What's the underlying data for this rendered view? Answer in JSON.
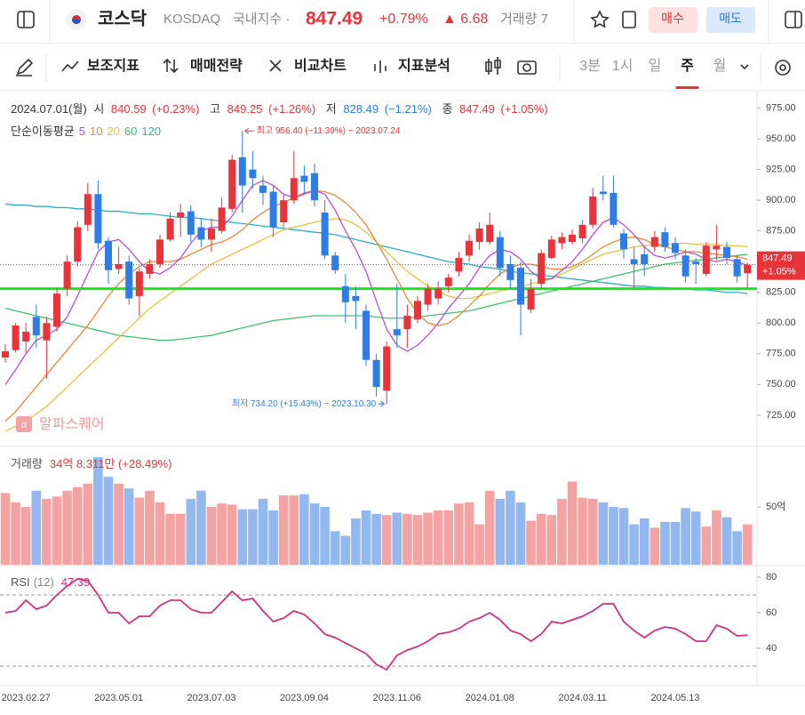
{
  "header": {
    "name": "코스닥",
    "code": "KOSDAQ",
    "market": "국내지수 ·",
    "change_pct": "+0.79%",
    "change": "▲ 6.68",
    "volume": "거래량 7",
    "buy": "매수",
    "sell": "매도"
  },
  "toolbar": {
    "items": [
      "보조지표",
      "매매전략",
      "비교차트",
      "지표분석"
    ],
    "timeframes": [
      "3분",
      "1시",
      "일",
      "주",
      "월"
    ],
    "selected_timeframe": 3
  },
  "watermark": "알파스퀘어",
  "chart_data": {
    "type": "candlestick",
    "legend": {
      "date": "2024.07.01(월)",
      "open_label": "시",
      "open_change": "(+0.23%)",
      "high_label": "고",
      "high_change": "(+1.26%)",
      "low_label": "저",
      "low_change": "(−1.21%)",
      "close_label": "종",
      "close_change": "(+1.05%)"
    },
    "price_tag_change": "+1.05%",
    "categories": [
      null,
      null,
      "2023.02.27",
      null,
      null,
      null,
      null,
      null,
      null,
      null,
      null,
      "2023.05.01",
      null,
      null,
      null,
      null,
      null,
      null,
      null,
      null,
      "2023.07.03",
      null,
      null,
      null,
      null,
      null,
      null,
      null,
      null,
      "2023.09.04",
      null,
      null,
      null,
      null,
      null,
      null,
      null,
      null,
      "2023.11.06",
      null,
      null,
      null,
      null,
      null,
      null,
      null,
      null,
      "2024.01.08",
      null,
      null,
      null,
      null,
      null,
      null,
      null,
      null,
      "2024.03.11",
      null,
      null,
      null,
      null,
      null,
      null,
      null,
      null,
      "2024.05.13",
      null,
      null,
      null,
      null,
      null,
      null,
      null
    ],
    "open": [
      772,
      778,
      785,
      805,
      786,
      797,
      828,
      850,
      880,
      905,
      867,
      844,
      850,
      822,
      840,
      848,
      868,
      886,
      891,
      878,
      868,
      875,
      893,
      935,
      925,
      912,
      907,
      882,
      900,
      920,
      922,
      890,
      855,
      830,
      822,
      810,
      770,
      745,
      795,
      795,
      803,
      815,
      820,
      830,
      842,
      855,
      866,
      866,
      870,
      848,
      845,
      811,
      832,
      853,
      865,
      866,
      869,
      880,
      907,
      906,
      873,
      852,
      856,
      862,
      874,
      865,
      855,
      850,
      840,
      860,
      862,
      852,
      840.59
    ],
    "high": [
      783,
      800,
      800,
      815,
      805,
      828,
      855,
      883,
      914,
      916,
      870,
      862,
      855,
      845,
      852,
      872,
      890,
      897,
      896,
      885,
      885,
      902,
      937,
      956.4,
      940,
      920,
      912,
      905,
      940,
      928,
      930,
      900,
      858,
      840,
      830,
      815,
      775,
      785,
      832,
      815,
      822,
      832,
      834,
      840,
      858,
      872,
      882,
      890,
      875,
      855,
      850,
      836,
      860,
      871,
      874,
      876,
      884,
      910,
      920,
      920,
      877,
      862,
      862,
      875,
      878,
      870,
      860,
      853,
      866,
      880,
      866,
      855,
      849.25
    ],
    "low": [
      768,
      776,
      776,
      780,
      755,
      793,
      822,
      846,
      875,
      860,
      832,
      840,
      815,
      806,
      836,
      845,
      866,
      870,
      866,
      862,
      858,
      873,
      890,
      890,
      910,
      896,
      870,
      878,
      897,
      905,
      895,
      852,
      840,
      800,
      795,
      765,
      740,
      734.2,
      780,
      780,
      800,
      810,
      815,
      825,
      838,
      850,
      860,
      864,
      838,
      828,
      790,
      808,
      828,
      852,
      860,
      864,
      865,
      877,
      900,
      878,
      852,
      828,
      838,
      858,
      858,
      852,
      833,
      832,
      838,
      851,
      848,
      833,
      828.49
    ],
    "close": [
      777,
      798,
      793,
      790,
      800,
      824,
      850,
      878,
      905,
      865,
      843,
      848,
      820,
      842,
      848,
      868,
      885,
      890,
      872,
      868,
      877,
      894,
      933,
      912,
      918,
      906,
      878,
      900,
      918,
      915,
      900,
      855,
      843,
      817,
      818,
      770,
      748,
      781,
      790,
      806,
      818,
      828,
      828,
      837,
      853,
      867,
      877,
      880,
      845,
      835,
      815,
      828,
      857,
      868,
      870,
      872,
      880,
      903,
      905,
      880,
      860,
      848,
      848,
      870,
      862,
      857,
      838,
      848,
      863,
      863,
      853,
      838,
      847.49
    ],
    "up_color": "#e8333a",
    "down_color": "#2e7ce6",
    "ylim": [
      701,
      987
    ],
    "yticks": [
      725,
      750,
      775,
      800,
      825,
      850,
      875,
      900,
      925,
      950,
      975
    ],
    "yticks_labels": [
      "725.00",
      "750.00",
      "775.00",
      "800.00",
      "825.00",
      "850.00",
      "875.00",
      "900.00",
      "925.00",
      "950.00",
      "975.00"
    ],
    "horizontal_line": {
      "value": 828,
      "color": "#1ee61e"
    },
    "annotations": [
      {
        "text": "최고 956.40 (−11.39%) − 2023.07.24",
        "color": "#e8333a"
      },
      {
        "text": "최저 734.20 (+15.43%) − 2023.10.30",
        "color": "#2e7ce6"
      }
    ],
    "ma": {
      "title": "단순이동평균",
      "series": [
        {
          "name": "5",
          "color": "#b44fd6",
          "values": [
            750,
            762,
            775,
            786,
            790,
            795,
            805,
            822,
            840,
            858,
            866,
            868,
            860,
            850,
            842,
            840,
            845,
            853,
            865,
            875,
            878,
            878,
            887,
            900,
            912,
            916,
            912,
            905,
            902,
            905,
            908,
            905,
            892,
            875,
            860,
            842,
            818,
            795,
            782,
            777,
            782,
            790,
            800,
            812,
            822,
            832,
            845,
            855,
            860,
            858,
            852,
            842,
            836,
            836,
            843,
            850,
            860,
            872,
            882,
            886,
            880,
            872,
            862,
            855,
            853,
            855,
            858,
            856,
            852,
            850,
            852,
            850,
            847
          ]
        },
        {
          "name": "10",
          "color": "#e8893a",
          "values": [
            720,
            728,
            738,
            748,
            758,
            768,
            778,
            788,
            798,
            810,
            822,
            832,
            840,
            846,
            850,
            850,
            850,
            852,
            856,
            860,
            864,
            866,
            870,
            876,
            884,
            890,
            895,
            898,
            902,
            906,
            908,
            907,
            904,
            898,
            890,
            880,
            866,
            852,
            836,
            820,
            808,
            800,
            798,
            800,
            806,
            814,
            822,
            832,
            840,
            845,
            848,
            848,
            846,
            844,
            844,
            846,
            850,
            856,
            862,
            866,
            869,
            870,
            868,
            864,
            862,
            860,
            858,
            858,
            857,
            856,
            855,
            854,
            852
          ]
        },
        {
          "name": "20",
          "color": "#e6c23a",
          "values": [
            712,
            716,
            720,
            726,
            732,
            740,
            748,
            756,
            764,
            772,
            780,
            788,
            796,
            804,
            812,
            818,
            824,
            830,
            836,
            842,
            848,
            852,
            856,
            860,
            864,
            868,
            872,
            876,
            878,
            880,
            882,
            884,
            885,
            884,
            880,
            874,
            866,
            858,
            850,
            842,
            836,
            830,
            826,
            822,
            820,
            820,
            822,
            824,
            826,
            828,
            830,
            832,
            834,
            836,
            840,
            844,
            848,
            852,
            856,
            858,
            860,
            862,
            863,
            864,
            864,
            865,
            865,
            864,
            864,
            864,
            863,
            863,
            862
          ]
        },
        {
          "name": "60",
          "color": "#3cc46a",
          "values": [
            812,
            810,
            808,
            806,
            804,
            802,
            800,
            798,
            796,
            794,
            792,
            790,
            789,
            788,
            787,
            786,
            786,
            787,
            788,
            789,
            790,
            792,
            794,
            796,
            798,
            800,
            802,
            803,
            804,
            805,
            806,
            806,
            806,
            806,
            806,
            806,
            805,
            804,
            804,
            804,
            805,
            806,
            807,
            808,
            809,
            810,
            812,
            814,
            816,
            818,
            820,
            822,
            824,
            826,
            828,
            830,
            832,
            834,
            836,
            838,
            840,
            842,
            844,
            846,
            848,
            849,
            850,
            851,
            852,
            853,
            854,
            855,
            856
          ]
        },
        {
          "name": "120",
          "color": "#2aaec4",
          "values": [
            897,
            896,
            896,
            895,
            895,
            894,
            894,
            893,
            893,
            892,
            891,
            891,
            890,
            889,
            889,
            888,
            887,
            886,
            886,
            885,
            884,
            883,
            882,
            881,
            880,
            879,
            878,
            877,
            876,
            875,
            874,
            873,
            872,
            870,
            868,
            866,
            864,
            862,
            860,
            858,
            856,
            854,
            852,
            850,
            849,
            848,
            846,
            845,
            844,
            842,
            841,
            840,
            839,
            838,
            837,
            836,
            835,
            834,
            833,
            832,
            831,
            830,
            830,
            829,
            829,
            828,
            828,
            827,
            827,
            826,
            825,
            825,
            824
          ]
        }
      ]
    },
    "volume": {
      "title": "거래량",
      "legend": "34억 8,311만 (+28.49%)",
      "up_color": "#f4a3a3",
      "down_color": "#92b8ef",
      "ylim": [
        0,
        100
      ],
      "yticks": [
        {
          "value": 50,
          "label": "50억"
        }
      ],
      "values": [
        62,
        54,
        50,
        64,
        57,
        59,
        64,
        67,
        70,
        93,
        76,
        70,
        66,
        58,
        64,
        54,
        44,
        44,
        57,
        64,
        50,
        53,
        52,
        48,
        48,
        57,
        47,
        60,
        60,
        61,
        53,
        50,
        29,
        25,
        40,
        47,
        44,
        43,
        45,
        44,
        43,
        45,
        47,
        47,
        53,
        54,
        35,
        64,
        57,
        64,
        54,
        38,
        44,
        43,
        57,
        72,
        58,
        57,
        54,
        50,
        49,
        35,
        40,
        32,
        37,
        37,
        49,
        46,
        33,
        47,
        41,
        29,
        34.83
      ]
    },
    "rsi": {
      "title": "RSI",
      "period": "(12)",
      "color": "#d0307f",
      "ylim": [
        19.5,
        84.5
      ],
      "yticks": [
        40,
        60,
        80
      ],
      "bands": [
        30,
        70
      ],
      "values": [
        60,
        61,
        67,
        62,
        64,
        70,
        75,
        79,
        78,
        70,
        60,
        60,
        54,
        58,
        58,
        64,
        67,
        67,
        62,
        60,
        60,
        66,
        72,
        67,
        68,
        61,
        55,
        57,
        61,
        59,
        54,
        48,
        46,
        43,
        40,
        37,
        31,
        28,
        36,
        39,
        41,
        44,
        48,
        49,
        51,
        55,
        57,
        60,
        56,
        50,
        48,
        44,
        48,
        55,
        54,
        56,
        58,
        61,
        65,
        65,
        55,
        50,
        46,
        50,
        52,
        51,
        48,
        44,
        44,
        53,
        51,
        47,
        47.39
      ]
    }
  }
}
